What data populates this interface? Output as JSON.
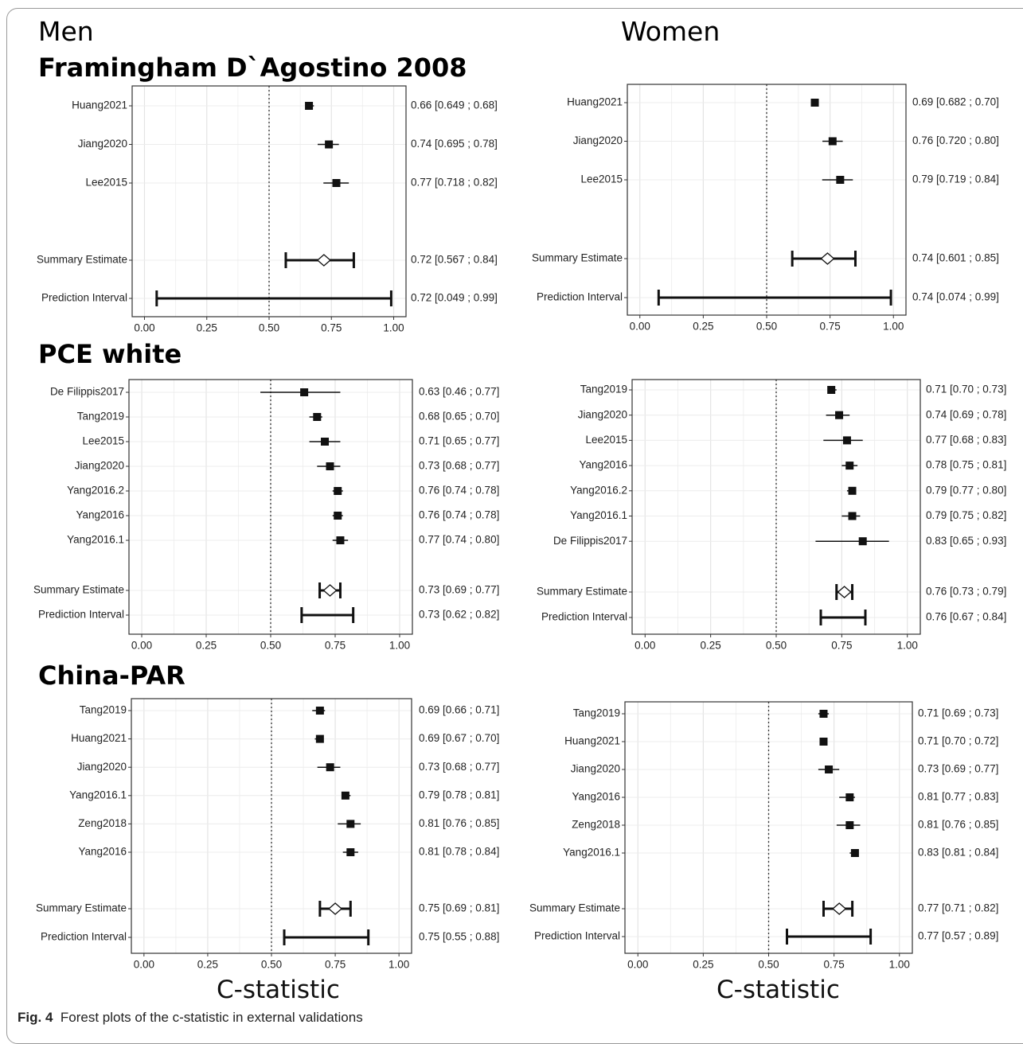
{
  "headings": {
    "men": "Men",
    "women": "Women",
    "framingham": "Framingham D`Agostino 2008",
    "pce": "PCE white",
    "china": "China-PAR"
  },
  "xtitle_men": "C-statistic",
  "xtitle_women": "C-statistic",
  "caption_label": "Fig. 4",
  "caption_text": "Forest plots of the c-statistic in external validations",
  "chart_data": [
    {
      "id": "framingham-men",
      "type": "forest",
      "title": "Framingham D`Agostino 2008",
      "group": "Men",
      "xlim": [
        0,
        1
      ],
      "xticks": [
        "0.00",
        "0.25",
        "0.50",
        "0.75",
        "1.00"
      ],
      "ref_line": 0.5,
      "studies": [
        {
          "label": "Huang2021",
          "est": 0.66,
          "lo": 0.649,
          "hi": 0.68,
          "text": "0.66 [0.649 ; 0.68]"
        },
        {
          "label": "Jiang2020",
          "est": 0.74,
          "lo": 0.695,
          "hi": 0.78,
          "text": "0.74 [0.695 ; 0.78]"
        },
        {
          "label": "Lee2015",
          "est": 0.77,
          "lo": 0.718,
          "hi": 0.82,
          "text": "0.77 [0.718 ; 0.82]"
        }
      ],
      "summary": {
        "label": "Summary Estimate",
        "est": 0.72,
        "lo": 0.567,
        "hi": 0.84,
        "text": "0.72 [0.567 ; 0.84]"
      },
      "prediction": {
        "label": "Prediction Interval",
        "lo": 0.049,
        "hi": 0.99,
        "text": "0.72 [0.049 ; 0.99]"
      }
    },
    {
      "id": "framingham-women",
      "type": "forest",
      "title": "Framingham D`Agostino 2008",
      "group": "Women",
      "xlim": [
        0,
        1
      ],
      "xticks": [
        "0.00",
        "0.25",
        "0.50",
        "0.75",
        "1.00"
      ],
      "ref_line": 0.5,
      "studies": [
        {
          "label": "Huang2021",
          "est": 0.69,
          "lo": 0.682,
          "hi": 0.7,
          "text": "0.69 [0.682 ; 0.70]"
        },
        {
          "label": "Jiang2020",
          "est": 0.76,
          "lo": 0.72,
          "hi": 0.8,
          "text": "0.76 [0.720 ; 0.80]"
        },
        {
          "label": "Lee2015",
          "est": 0.79,
          "lo": 0.719,
          "hi": 0.84,
          "text": "0.79 [0.719 ; 0.84]"
        }
      ],
      "summary": {
        "label": "Summary Estimate",
        "est": 0.74,
        "lo": 0.601,
        "hi": 0.85,
        "text": "0.74 [0.601 ; 0.85]"
      },
      "prediction": {
        "label": "Prediction Interval",
        "lo": 0.074,
        "hi": 0.99,
        "text": "0.74 [0.074 ; 0.99]"
      }
    },
    {
      "id": "pce-men",
      "type": "forest",
      "title": "PCE white",
      "group": "Men",
      "xlim": [
        0,
        1
      ],
      "xticks": [
        "0.00",
        "0.25",
        "0.50",
        "0.75",
        "1.00"
      ],
      "ref_line": 0.5,
      "studies": [
        {
          "label": "De Filippis2017",
          "est": 0.63,
          "lo": 0.46,
          "hi": 0.77,
          "text": "0.63 [0.46 ; 0.77]"
        },
        {
          "label": "Tang2019",
          "est": 0.68,
          "lo": 0.65,
          "hi": 0.7,
          "text": "0.68 [0.65 ; 0.70]"
        },
        {
          "label": "Lee2015",
          "est": 0.71,
          "lo": 0.65,
          "hi": 0.77,
          "text": "0.71 [0.65 ; 0.77]"
        },
        {
          "label": "Jiang2020",
          "est": 0.73,
          "lo": 0.68,
          "hi": 0.77,
          "text": "0.73 [0.68 ; 0.77]"
        },
        {
          "label": "Yang2016.2",
          "est": 0.76,
          "lo": 0.74,
          "hi": 0.78,
          "text": "0.76 [0.74 ; 0.78]"
        },
        {
          "label": "Yang2016",
          "est": 0.76,
          "lo": 0.74,
          "hi": 0.78,
          "text": "0.76 [0.74 ; 0.78]"
        },
        {
          "label": "Yang2016.1",
          "est": 0.77,
          "lo": 0.74,
          "hi": 0.8,
          "text": "0.77 [0.74 ; 0.80]"
        }
      ],
      "summary": {
        "label": "Summary Estimate",
        "est": 0.73,
        "lo": 0.69,
        "hi": 0.77,
        "text": "0.73 [0.69 ; 0.77]"
      },
      "prediction": {
        "label": "Prediction Interval",
        "lo": 0.62,
        "hi": 0.82,
        "text": "0.73 [0.62 ; 0.82]"
      }
    },
    {
      "id": "pce-women",
      "type": "forest",
      "title": "PCE white",
      "group": "Women",
      "xlim": [
        0,
        1
      ],
      "xticks": [
        "0.00",
        "0.25",
        "0.50",
        "0.75",
        "1.00"
      ],
      "ref_line": 0.5,
      "studies": [
        {
          "label": "Tang2019",
          "est": 0.71,
          "lo": 0.7,
          "hi": 0.73,
          "text": "0.71 [0.70 ; 0.73]"
        },
        {
          "label": "Jiang2020",
          "est": 0.74,
          "lo": 0.69,
          "hi": 0.78,
          "text": "0.74 [0.69 ; 0.78]"
        },
        {
          "label": "Lee2015",
          "est": 0.77,
          "lo": 0.68,
          "hi": 0.83,
          "text": "0.77 [0.68 ; 0.83]"
        },
        {
          "label": "Yang2016",
          "est": 0.78,
          "lo": 0.75,
          "hi": 0.81,
          "text": "0.78 [0.75 ; 0.81]"
        },
        {
          "label": "Yang2016.2",
          "est": 0.79,
          "lo": 0.77,
          "hi": 0.8,
          "text": "0.79 [0.77 ; 0.80]"
        },
        {
          "label": "Yang2016.1",
          "est": 0.79,
          "lo": 0.75,
          "hi": 0.82,
          "text": "0.79 [0.75 ; 0.82]"
        },
        {
          "label": "De Filippis2017",
          "est": 0.83,
          "lo": 0.65,
          "hi": 0.93,
          "text": "0.83 [0.65 ; 0.93]"
        }
      ],
      "summary": {
        "label": "Summary Estimate",
        "est": 0.76,
        "lo": 0.73,
        "hi": 0.79,
        "text": "0.76 [0.73 ; 0.79]"
      },
      "prediction": {
        "label": "Prediction Interval",
        "lo": 0.67,
        "hi": 0.84,
        "text": "0.76 [0.67 ; 0.84]"
      }
    },
    {
      "id": "china-men",
      "type": "forest",
      "title": "China-PAR",
      "group": "Men",
      "xlim": [
        0,
        1
      ],
      "xticks": [
        "0.00",
        "0.25",
        "0.50",
        "0.75",
        "1.00"
      ],
      "ref_line": 0.5,
      "studies": [
        {
          "label": "Tang2019",
          "est": 0.69,
          "lo": 0.66,
          "hi": 0.71,
          "text": "0.69 [0.66 ; 0.71]"
        },
        {
          "label": "Huang2021",
          "est": 0.69,
          "lo": 0.67,
          "hi": 0.7,
          "text": "0.69 [0.67 ; 0.70]"
        },
        {
          "label": "Jiang2020",
          "est": 0.73,
          "lo": 0.68,
          "hi": 0.77,
          "text": "0.73 [0.68 ; 0.77]"
        },
        {
          "label": "Yang2016.1",
          "est": 0.79,
          "lo": 0.78,
          "hi": 0.81,
          "text": "0.79 [0.78 ; 0.81]"
        },
        {
          "label": "Zeng2018",
          "est": 0.81,
          "lo": 0.76,
          "hi": 0.85,
          "text": "0.81 [0.76 ; 0.85]"
        },
        {
          "label": "Yang2016",
          "est": 0.81,
          "lo": 0.78,
          "hi": 0.84,
          "text": "0.81 [0.78 ; 0.84]"
        }
      ],
      "summary": {
        "label": "Summary Estimate",
        "est": 0.75,
        "lo": 0.69,
        "hi": 0.81,
        "text": "0.75 [0.69 ; 0.81]"
      },
      "prediction": {
        "label": "Prediction Interval",
        "lo": 0.55,
        "hi": 0.88,
        "text": "0.75 [0.55 ; 0.88]"
      }
    },
    {
      "id": "china-women",
      "type": "forest",
      "title": "China-PAR",
      "group": "Women",
      "xlim": [
        0,
        1
      ],
      "xticks": [
        "0.00",
        "0.25",
        "0.50",
        "0.75",
        "1.00"
      ],
      "ref_line": 0.5,
      "studies": [
        {
          "label": "Tang2019",
          "est": 0.71,
          "lo": 0.69,
          "hi": 0.73,
          "text": "0.71 [0.69 ; 0.73]"
        },
        {
          "label": "Huang2021",
          "est": 0.71,
          "lo": 0.7,
          "hi": 0.72,
          "text": "0.71 [0.70 ; 0.72]"
        },
        {
          "label": "Jiang2020",
          "est": 0.73,
          "lo": 0.69,
          "hi": 0.77,
          "text": "0.73 [0.69 ; 0.77]"
        },
        {
          "label": "Yang2016",
          "est": 0.81,
          "lo": 0.77,
          "hi": 0.83,
          "text": "0.81 [0.77 ; 0.83]"
        },
        {
          "label": "Zeng2018",
          "est": 0.81,
          "lo": 0.76,
          "hi": 0.85,
          "text": "0.81 [0.76 ; 0.85]"
        },
        {
          "label": "Yang2016.1",
          "est": 0.83,
          "lo": 0.81,
          "hi": 0.84,
          "text": "0.83 [0.81 ; 0.84]"
        }
      ],
      "summary": {
        "label": "Summary Estimate",
        "est": 0.77,
        "lo": 0.71,
        "hi": 0.82,
        "text": "0.77 [0.71 ; 0.82]"
      },
      "prediction": {
        "label": "Prediction Interval",
        "lo": 0.57,
        "hi": 0.89,
        "text": "0.77 [0.57 ; 0.89]"
      }
    }
  ]
}
